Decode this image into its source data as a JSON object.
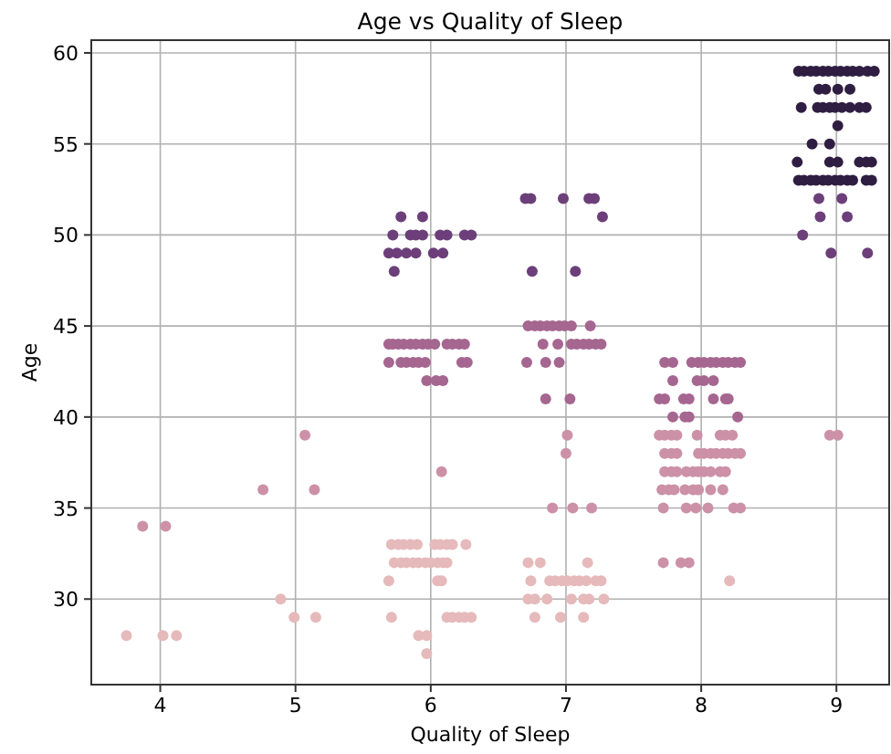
{
  "chart_data": {
    "type": "scatter",
    "title": "Age vs Quality of Sleep",
    "xlabel": "Quality of Sleep",
    "ylabel": "Age",
    "xlim": [
      3.49,
      9.39
    ],
    "xticks": [
      4,
      5,
      6,
      7,
      8,
      9
    ],
    "ylim": [
      25.3,
      60.7
    ],
    "yticks": [
      30,
      35,
      40,
      45,
      50,
      55,
      60
    ],
    "grid": true,
    "marker": "circle",
    "series": [
      {
        "color": "#e6b9bb",
        "x": [
          5.71,
          5.76,
          5.8,
          5.85,
          5.9,
          6.03,
          6.07,
          6.12,
          6.16,
          6.26,
          5.73,
          5.78,
          5.82,
          5.87,
          5.91,
          5.96,
          6.0,
          6.05,
          6.09,
          6.12,
          6.72,
          6.81,
          7.16,
          5.69,
          6.05,
          6.08,
          6.74,
          6.88,
          6.92,
          6.97,
          7.01,
          7.06,
          7.1,
          7.15,
          7.22,
          7.26,
          8.21,
          4.89,
          6.72,
          6.77,
          6.86,
          7.04,
          7.13,
          7.17,
          7.28,
          4.99,
          5.15,
          5.71,
          6.12,
          6.16,
          6.21,
          6.25,
          6.3,
          6.77,
          6.96,
          7.13,
          3.75,
          4.02,
          4.12,
          5.91,
          5.97,
          5.97
        ],
        "values": [
          33,
          33,
          33,
          33,
          33,
          33,
          33,
          33,
          33,
          33,
          32,
          32,
          32,
          32,
          32,
          32,
          32,
          32,
          32,
          32,
          32,
          32,
          32,
          31,
          31,
          31,
          31,
          31,
          31,
          31,
          31,
          31,
          31,
          31,
          31,
          31,
          31,
          30,
          30,
          30,
          30,
          30,
          30,
          30,
          30,
          29,
          29,
          29,
          29,
          29,
          29,
          29,
          29,
          29,
          29,
          29,
          28,
          28,
          28,
          28,
          28,
          27
        ]
      },
      {
        "color": "#cc91a6",
        "x": [
          3.87,
          4.04,
          7.72,
          7.85,
          7.91,
          6.9,
          7.05,
          7.19,
          7.72,
          7.89,
          7.96,
          8.05,
          8.24,
          8.29,
          4.76,
          5.14,
          7.71,
          7.76,
          7.8,
          7.88,
          7.94,
          7.98,
          8.07,
          8.16,
          6.08,
          7.73,
          7.78,
          7.82,
          7.89,
          7.94,
          7.98,
          8.02,
          8.07,
          8.14,
          8.18,
          7.0,
          7.73,
          7.78,
          7.82,
          7.98,
          8.02,
          8.07,
          8.11,
          8.16,
          8.2,
          8.25,
          8.29,
          5.07,
          7.01,
          7.69,
          7.73,
          7.78,
          7.82,
          7.97,
          8.14,
          8.18,
          8.23,
          8.95,
          9.01
        ],
        "values": [
          34,
          34,
          32,
          32,
          32,
          35,
          35,
          35,
          35,
          35,
          35,
          35,
          35,
          35,
          36,
          36,
          36,
          36,
          36,
          36,
          36,
          36,
          36,
          36,
          37,
          37,
          37,
          37,
          37,
          37,
          37,
          37,
          37,
          37,
          37,
          38,
          38,
          38,
          38,
          38,
          38,
          38,
          38,
          38,
          38,
          38,
          38,
          39,
          39,
          39,
          39,
          39,
          39,
          39,
          39,
          39,
          39,
          39,
          39
        ]
      },
      {
        "color": "#a56690",
        "x": [
          6.72,
          6.77,
          6.81,
          6.86,
          6.9,
          6.95,
          6.99,
          7.04,
          7.18,
          5.69,
          5.72,
          5.76,
          5.8,
          5.85,
          5.89,
          5.94,
          5.98,
          6.03,
          6.12,
          6.16,
          6.21,
          6.25,
          6.83,
          6.94,
          7.04,
          7.08,
          7.13,
          7.17,
          7.22,
          7.26,
          5.69,
          5.78,
          5.82,
          5.87,
          5.91,
          5.96,
          6.23,
          6.27,
          6.71,
          6.85,
          6.95,
          7.73,
          7.79,
          7.93,
          7.98,
          8.02,
          8.07,
          8.11,
          8.16,
          8.2,
          8.25,
          8.29,
          5.97,
          6.04,
          6.09,
          7.79,
          7.97,
          8.02,
          8.09,
          6.85,
          7.03,
          7.69,
          7.73,
          7.87,
          7.91,
          8.09,
          8.18,
          8.2,
          7.79,
          7.88,
          7.91,
          8.27
        ],
        "values": [
          45,
          45,
          45,
          45,
          45,
          45,
          45,
          45,
          45,
          44,
          44,
          44,
          44,
          44,
          44,
          44,
          44,
          44,
          44,
          44,
          44,
          44,
          44,
          44,
          44,
          44,
          44,
          44,
          44,
          44,
          43,
          43,
          43,
          43,
          43,
          43,
          43,
          43,
          43,
          43,
          43,
          43,
          43,
          43,
          43,
          43,
          43,
          43,
          43,
          43,
          43,
          43,
          42,
          42,
          42,
          42,
          42,
          42,
          42,
          41,
          41,
          41,
          41,
          41,
          41,
          41,
          41,
          41,
          40,
          40,
          40,
          40
        ]
      },
      {
        "color": "#6c3f7a",
        "x": [
          6.7,
          6.74,
          6.98,
          7.17,
          7.21,
          8.87,
          9.04,
          5.78,
          5.94,
          7.27,
          8.88,
          9.08,
          5.72,
          5.85,
          5.89,
          5.94,
          6.07,
          6.12,
          6.25,
          6.3,
          8.75,
          5.69,
          5.75,
          5.82,
          5.89,
          6.02,
          6.09,
          8.96,
          9.23,
          5.73,
          6.75,
          7.07
        ],
        "values": [
          52,
          52,
          52,
          52,
          52,
          52,
          52,
          51,
          51,
          51,
          51,
          51,
          50,
          50,
          50,
          50,
          50,
          50,
          50,
          50,
          50,
          49,
          49,
          49,
          49,
          49,
          49,
          49,
          49,
          48,
          48,
          48
        ]
      },
      {
        "color": "#2f1e41",
        "x": [
          8.72,
          8.76,
          8.81,
          8.85,
          8.9,
          8.94,
          8.99,
          9.03,
          9.08,
          9.12,
          9.17,
          9.23,
          9.28,
          8.87,
          8.92,
          9.01,
          9.1,
          8.74,
          8.86,
          8.9,
          8.95,
          8.99,
          9.04,
          9.1,
          9.17,
          9.22,
          9.01,
          8.82,
          8.95,
          8.71,
          8.95,
          9.01,
          9.17,
          9.22,
          9.26,
          8.72,
          8.76,
          8.81,
          8.85,
          8.9,
          8.94,
          8.99,
          9.03,
          9.08,
          9.12,
          9.22,
          9.26
        ],
        "values": [
          59,
          59,
          59,
          59,
          59,
          59,
          59,
          59,
          59,
          59,
          59,
          59,
          59,
          58,
          58,
          58,
          58,
          57,
          57,
          57,
          57,
          57,
          57,
          57,
          57,
          57,
          56,
          55,
          55,
          54,
          54,
          54,
          54,
          54,
          54,
          53,
          53,
          53,
          53,
          53,
          53,
          53,
          53,
          53,
          53,
          53,
          53
        ]
      }
    ]
  }
}
